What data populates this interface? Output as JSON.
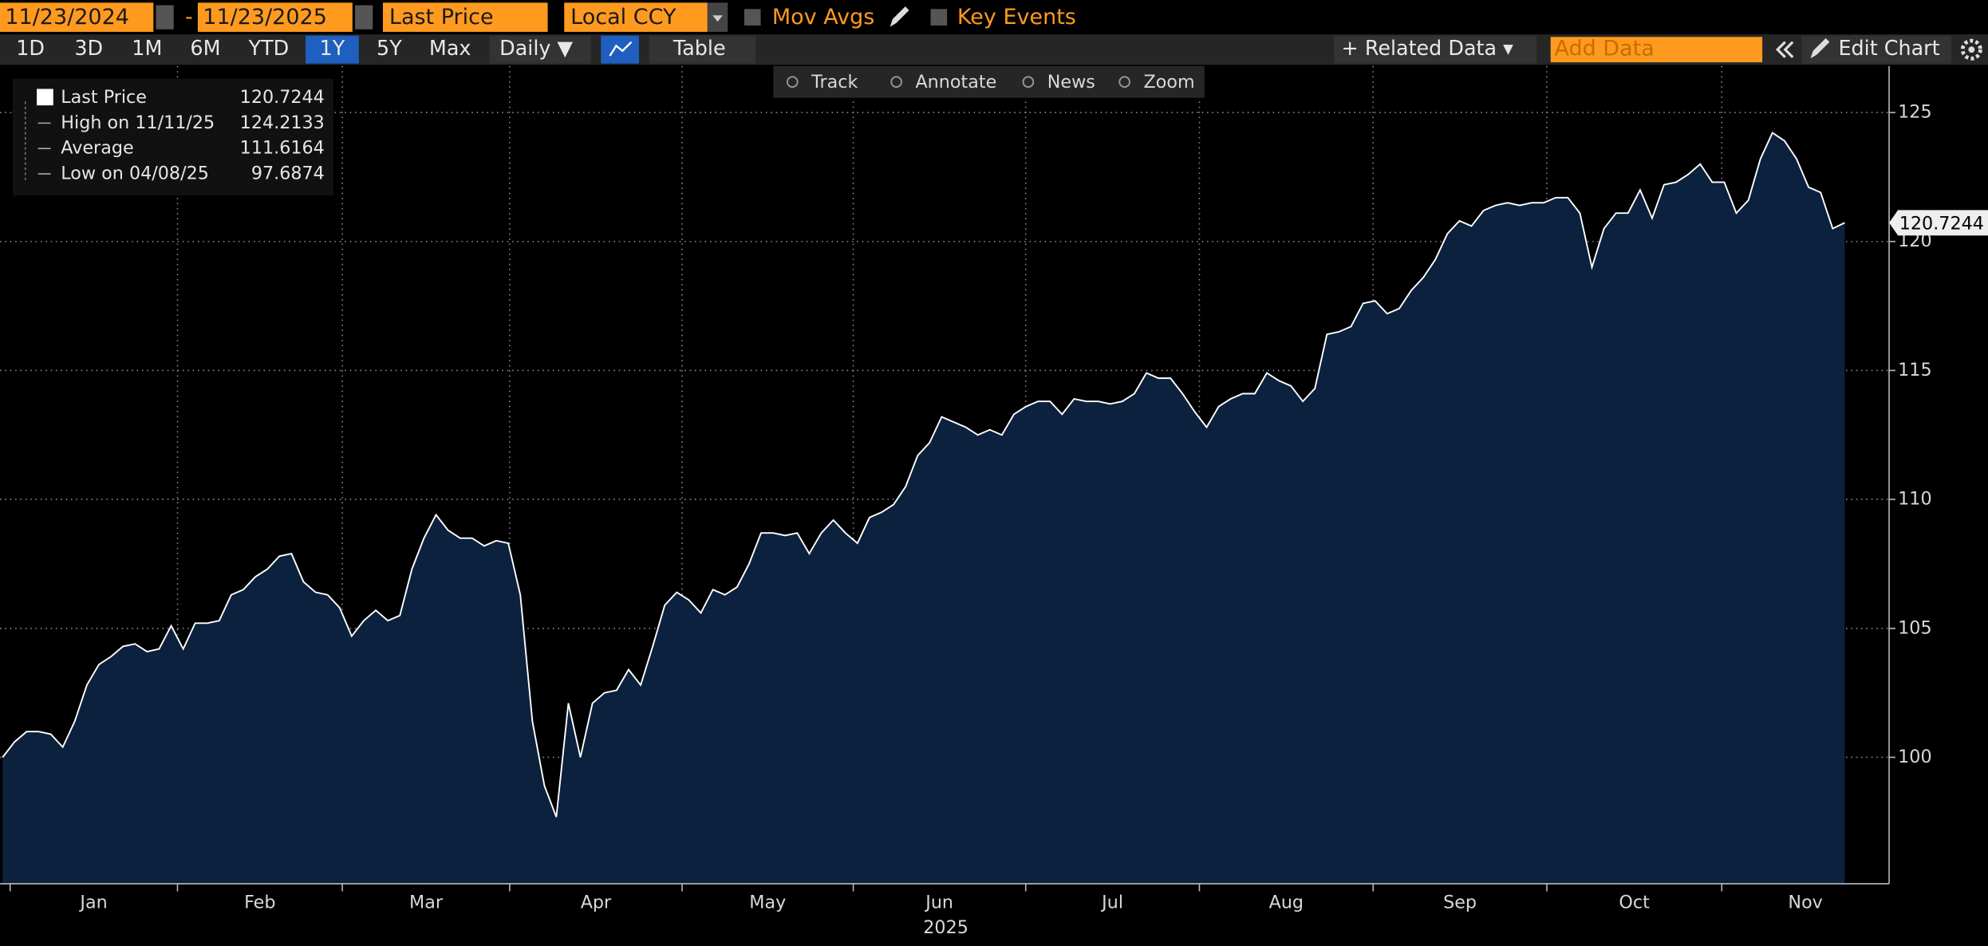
{
  "toolbar": {
    "start_date": "11/23/2024",
    "separator": "-",
    "end_date": "11/23/2025",
    "field": "Last Price",
    "currency": "Local CCY",
    "mov_avgs": "Mov Avgs",
    "key_events": "Key Events"
  },
  "range_bar": {
    "periods": [
      "1D",
      "3D",
      "1M",
      "6M",
      "YTD",
      "1Y",
      "5Y",
      "Max"
    ],
    "selected": "1Y",
    "frequency": "Daily ▼",
    "table": "Table",
    "related_data": "+ Related Data ▾",
    "add_data": "Add Data",
    "edit_chart": "Edit Chart"
  },
  "tools": [
    "Track",
    "Annotate",
    "News",
    "Zoom"
  ],
  "legend": {
    "rows": [
      {
        "label": "High on 11/11/25",
        "value": "124.2133"
      },
      {
        "label": "Average",
        "value": "111.6164"
      },
      {
        "label": "Low on 04/08/25",
        "value": "97.6874"
      }
    ]
  },
  "chart_data": {
    "type": "area",
    "series": [
      {
        "name": "Last Price",
        "color": "#ffffff",
        "fill": "#0b213d",
        "values": [
          100.0,
          100.6,
          101.0,
          101.0,
          100.9,
          100.4,
          101.4,
          102.8,
          103.6,
          103.9,
          104.3,
          104.4,
          104.1,
          104.2,
          105.1,
          104.2,
          105.2,
          105.2,
          105.3,
          106.3,
          106.5,
          107.0,
          107.3,
          107.8,
          107.9,
          106.8,
          106.4,
          106.3,
          105.8,
          104.7,
          105.3,
          105.7,
          105.3,
          105.5,
          107.3,
          108.5,
          109.4,
          108.8,
          108.5,
          108.5,
          108.2,
          108.4,
          108.3,
          106.3,
          101.4,
          98.9,
          97.6874,
          102.1,
          100.0,
          102.1,
          102.5,
          102.6,
          103.4,
          102.8,
          104.3,
          105.9,
          106.4,
          106.1,
          105.6,
          106.5,
          106.3,
          106.6,
          107.5,
          108.7,
          108.7,
          108.6,
          108.7,
          107.9,
          108.7,
          109.2,
          108.7,
          108.3,
          109.3,
          109.5,
          109.8,
          110.5,
          111.7,
          112.2,
          113.2,
          113.0,
          112.8,
          112.5,
          112.7,
          112.5,
          113.3,
          113.6,
          113.8,
          113.8,
          113.3,
          113.9,
          113.8,
          113.8,
          113.7,
          113.8,
          114.1,
          114.9,
          114.7,
          114.7,
          114.1,
          113.4,
          112.8,
          113.6,
          113.9,
          114.1,
          114.1,
          114.9,
          114.6,
          114.4,
          113.8,
          114.3,
          116.4,
          116.5,
          116.7,
          117.6,
          117.7,
          117.2,
          117.4,
          118.1,
          118.6,
          119.3,
          120.3,
          120.8,
          120.6,
          121.2,
          121.4,
          121.5,
          121.4,
          121.5,
          121.5,
          121.7,
          121.7,
          121.1,
          119.0,
          120.5,
          121.1,
          121.1,
          122.0,
          120.9,
          122.2,
          122.3,
          122.6,
          123.0,
          122.3,
          122.3,
          121.1,
          121.6,
          123.2,
          124.2133,
          123.9,
          123.2,
          122.1,
          121.9,
          120.5,
          120.7244
        ]
      }
    ],
    "month_labels": [
      "Jan",
      "Feb",
      "Mar",
      "Apr",
      "May",
      "Jun",
      "Jul",
      "Aug",
      "Sep",
      "Oct",
      "Nov"
    ],
    "year_label": "2025",
    "last_price_label": "120.7244",
    "ylim": [
      95.1,
      126.8
    ],
    "yticks": [
      100,
      105,
      110,
      115,
      120,
      125
    ],
    "grid": true
  }
}
